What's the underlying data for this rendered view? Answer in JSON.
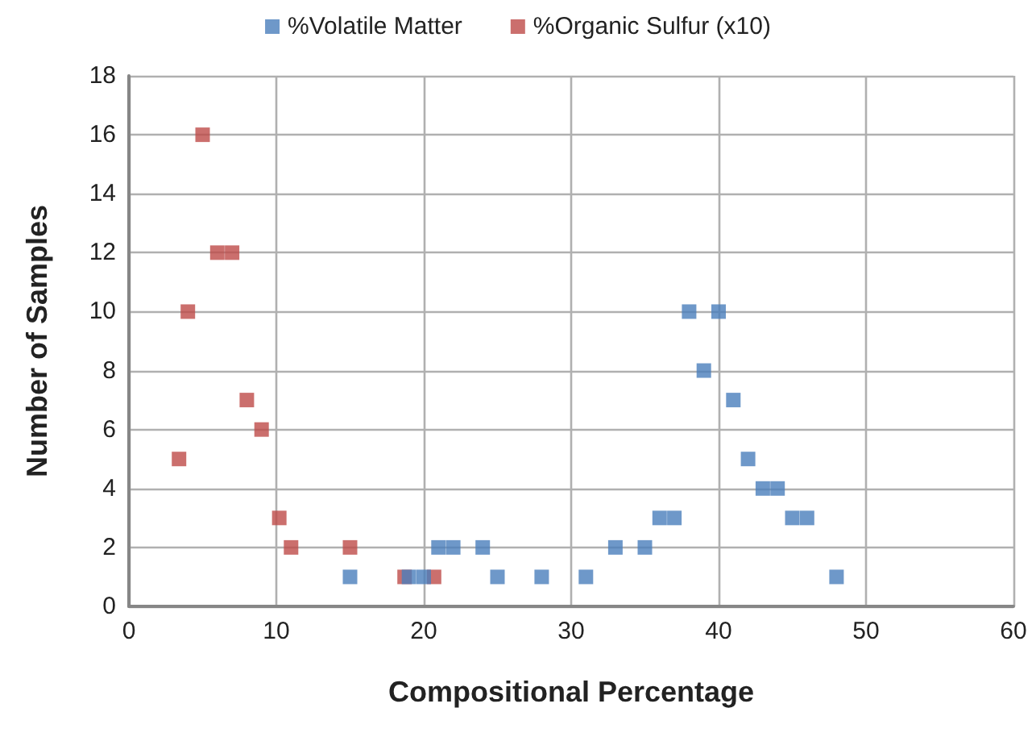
{
  "chart_data": {
    "type": "scatter",
    "xlabel": "Compositional Percentage",
    "ylabel": "Number of Samples",
    "series": [
      {
        "name": "%Volatile Matter",
        "color": "#4a7ebb",
        "x": [
          15,
          19,
          20,
          21,
          22,
          24,
          25,
          28,
          31,
          33,
          35,
          36,
          37,
          38,
          39,
          40,
          41,
          42,
          43,
          44,
          45,
          46,
          48
        ],
        "values": [
          1,
          1,
          1,
          2,
          2,
          2,
          1,
          1,
          1,
          2,
          2,
          3,
          3,
          10,
          8,
          10,
          7,
          5,
          4,
          4,
          3,
          3,
          1
        ]
      },
      {
        "name": "%Organic Sulfur (x10)",
        "color": "#be4b48",
        "x": [
          3.4,
          4,
          5,
          6,
          7,
          8,
          9,
          10.2,
          11,
          15,
          18.7,
          20.7
        ],
        "values": [
          5,
          10,
          16,
          12,
          12,
          7,
          6,
          3,
          2,
          2,
          1,
          1
        ]
      }
    ],
    "xlim": [
      0,
      60
    ],
    "xticks": [
      0,
      10,
      20,
      30,
      40,
      50,
      60
    ],
    "ylim": [
      0,
      18
    ],
    "yticks": [
      0,
      2,
      4,
      6,
      8,
      10,
      12,
      14,
      16,
      18
    ],
    "grid": true,
    "legend": "top",
    "marker": "square"
  }
}
